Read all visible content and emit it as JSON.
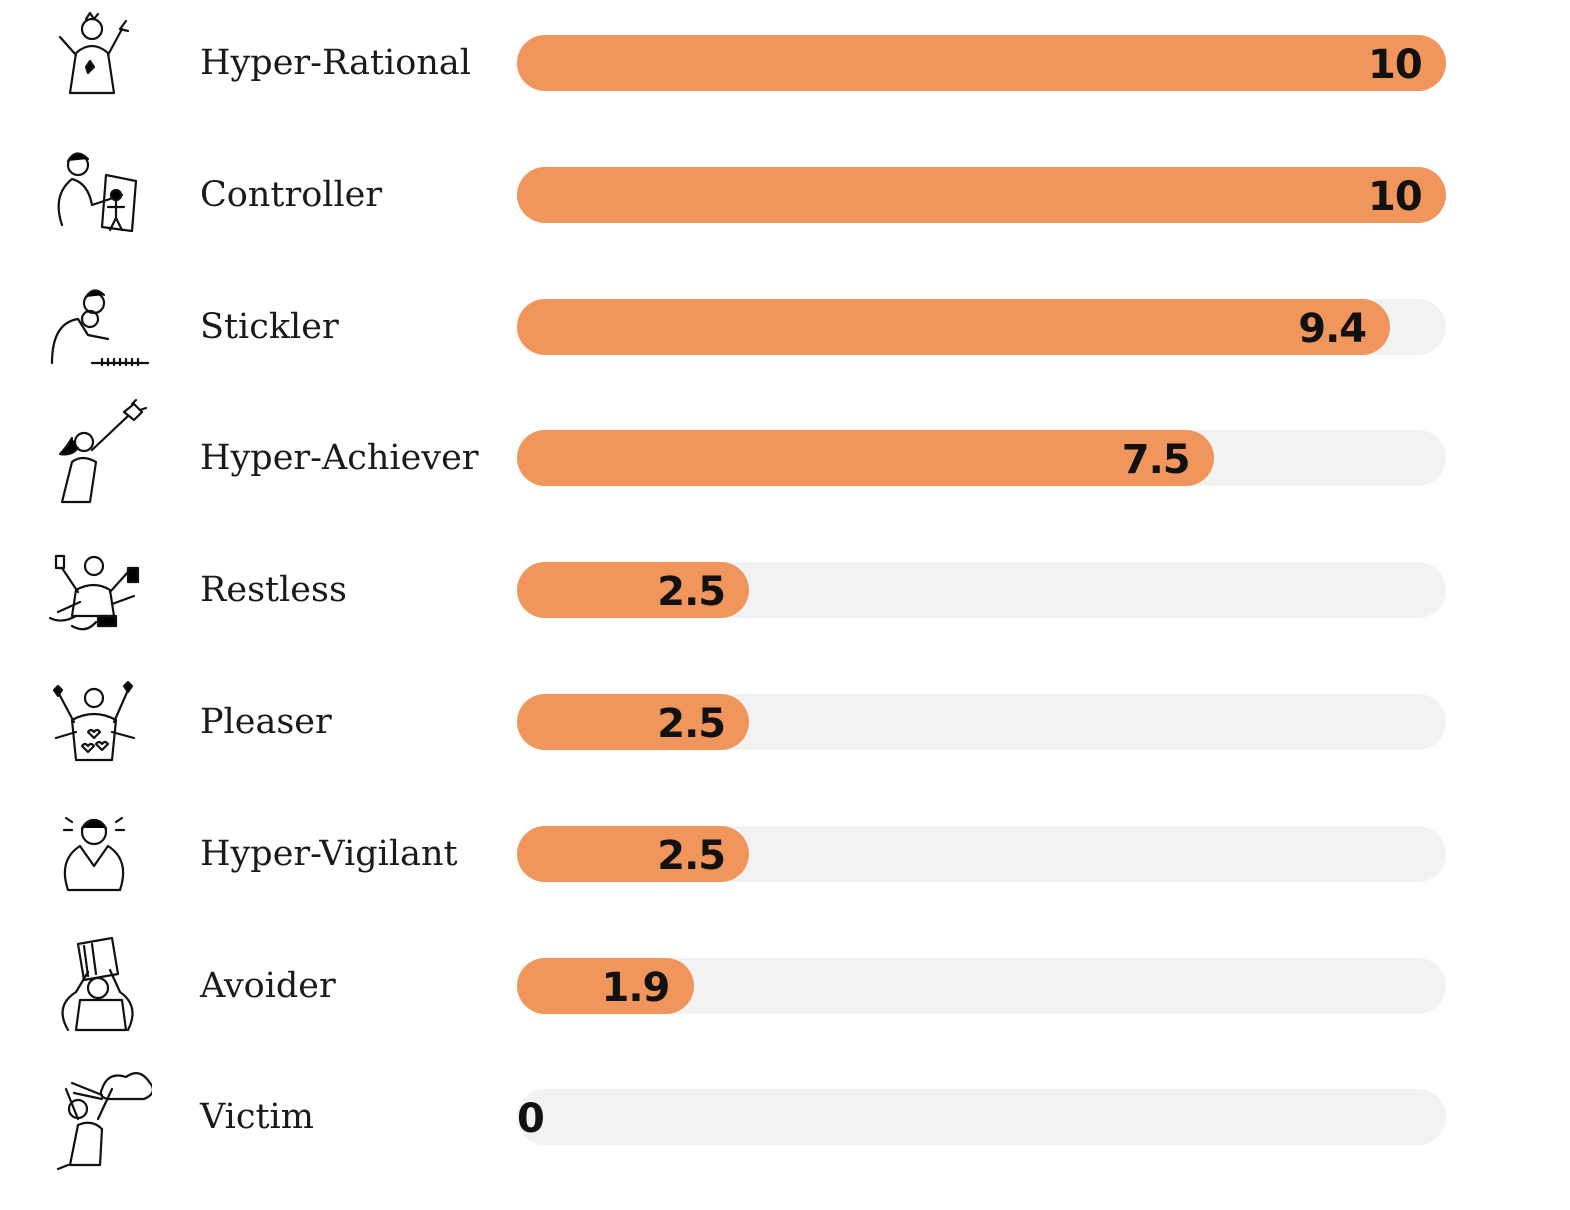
{
  "chart_data": {
    "type": "bar",
    "orientation": "horizontal",
    "categories": [
      "Hyper-Rational",
      "Controller",
      "Stickler",
      "Hyper-Achiever",
      "Restless",
      "Pleaser",
      "Hyper-Vigilant",
      "Avoider",
      "Victim"
    ],
    "values": [
      10,
      10,
      9.4,
      7.5,
      2.5,
      2.5,
      2.5,
      1.9,
      0
    ],
    "value_labels": [
      "10",
      "10",
      "9.4",
      "7.5",
      "2.5",
      "2.5",
      "2.5",
      "1.9",
      "0"
    ],
    "icons": [
      "hyper-rational-icon",
      "controller-icon",
      "stickler-icon",
      "hyper-achiever-icon",
      "restless-icon",
      "pleaser-icon",
      "hyper-vigilant-icon",
      "avoider-icon",
      "victim-icon"
    ],
    "xlim": [
      0,
      10
    ],
    "grid": false,
    "legend": "none",
    "colors": {
      "bar": "#f0965c",
      "track": "#f2f2f2",
      "label": "#1a1a1a",
      "value": "#111111"
    }
  }
}
